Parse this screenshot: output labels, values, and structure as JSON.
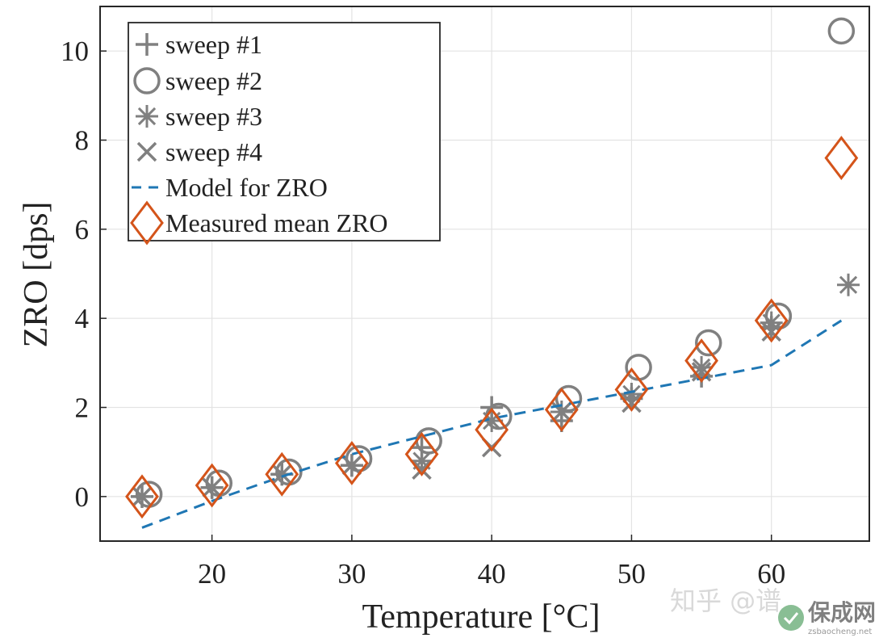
{
  "chart_data": {
    "type": "scatter",
    "xlabel": "Temperature [°C]",
    "ylabel": "ZRO [dps]",
    "xlim": [
      12,
      67
    ],
    "ylim": [
      -1,
      11
    ],
    "xticks": [
      20,
      30,
      40,
      50,
      60
    ],
    "yticks": [
      0,
      2,
      4,
      6,
      8,
      10
    ],
    "grid": true,
    "legend_position": "top-left",
    "series": [
      {
        "name": "sweep #1",
        "marker": "plus",
        "color": "#808080",
        "x": [
          15,
          20,
          25,
          30,
          35,
          40,
          45,
          50,
          55,
          60
        ],
        "y": [
          0.0,
          0.2,
          0.5,
          0.7,
          1.1,
          2.0,
          1.7,
          2.2,
          2.7,
          3.8
        ]
      },
      {
        "name": "sweep #2",
        "marker": "circle",
        "color": "#808080",
        "x": [
          15.5,
          20.5,
          25.5,
          30.5,
          35.5,
          40.5,
          45.5,
          50.5,
          55.5,
          60.5,
          65
        ],
        "y": [
          0.05,
          0.3,
          0.55,
          0.85,
          1.25,
          1.8,
          2.2,
          2.9,
          3.45,
          4.05,
          10.45
        ]
      },
      {
        "name": "sweep #3",
        "marker": "asterisk",
        "color": "#808080",
        "x": [
          15,
          20,
          25,
          30,
          35,
          40,
          45,
          50,
          55,
          60,
          65.5
        ],
        "y": [
          0.0,
          0.2,
          0.5,
          0.7,
          0.8,
          1.7,
          1.9,
          2.3,
          2.9,
          3.9,
          4.75
        ]
      },
      {
        "name": "sweep #4",
        "marker": "x",
        "color": "#808080",
        "x": [
          15,
          20,
          25,
          30,
          35,
          40,
          45,
          50,
          55,
          60
        ],
        "y": [
          0.0,
          0.2,
          0.5,
          0.7,
          0.6,
          1.1,
          1.9,
          2.1,
          2.8,
          3.7
        ]
      },
      {
        "name": "Model for ZRO",
        "type": "line",
        "style": "dashed",
        "color": "#1f77b4",
        "x": [
          15,
          20,
          25,
          30,
          35,
          40,
          45,
          50,
          55,
          60,
          65
        ],
        "y": [
          -0.7,
          -0.1,
          0.45,
          0.95,
          1.35,
          1.75,
          2.05,
          2.35,
          2.65,
          2.95,
          3.95
        ]
      },
      {
        "name": "Measured mean ZRO",
        "marker": "diamond",
        "color": "#d4541a",
        "x": [
          15,
          20,
          25,
          30,
          35,
          40,
          45,
          50,
          55,
          60,
          65
        ],
        "y": [
          0.0,
          0.25,
          0.5,
          0.75,
          0.95,
          1.5,
          1.95,
          2.4,
          3.05,
          3.95,
          7.6
        ]
      }
    ]
  },
  "watermark": {
    "text_left": "知乎 @谱",
    "logo_text": "保成网",
    "logo_sub": "zsbaocheng.net"
  }
}
